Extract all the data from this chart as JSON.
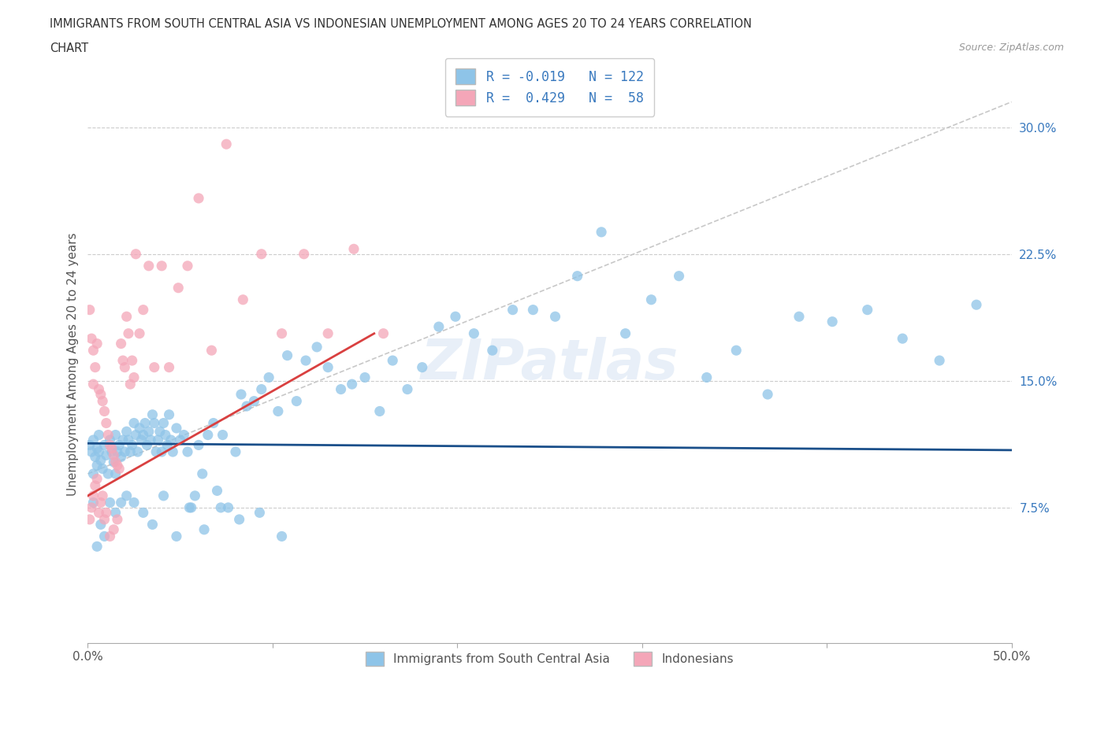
{
  "title_line1": "IMMIGRANTS FROM SOUTH CENTRAL ASIA VS INDONESIAN UNEMPLOYMENT AMONG AGES 20 TO 24 YEARS CORRELATION",
  "title_line2": "CHART",
  "source_text": "Source: ZipAtlas.com",
  "ylabel": "Unemployment Among Ages 20 to 24 years",
  "xlim": [
    0.0,
    0.5
  ],
  "ylim": [
    -0.005,
    0.325
  ],
  "ytick_values": [
    0.075,
    0.15,
    0.225,
    0.3
  ],
  "ytick_labels": [
    "7.5%",
    "15.0%",
    "22.5%",
    "30.0%"
  ],
  "xtick_values": [
    0.0,
    0.1,
    0.2,
    0.3,
    0.4,
    0.5
  ],
  "xtick_labels": [
    "0.0%",
    "",
    "",
    "",
    "",
    "50.0%"
  ],
  "color_blue": "#8ec4e8",
  "color_pink": "#f4a6b8",
  "color_blue_line": "#1a4f8a",
  "color_pink_line": "#d94040",
  "color_dashed_line": "#c8c8c8",
  "watermark": "ZIPatlas",
  "blue_line_y0": 0.113,
  "blue_line_y1": 0.109,
  "pink_line_x0": 0.0,
  "pink_line_y0": 0.082,
  "pink_line_x1": 0.155,
  "pink_line_y1": 0.178,
  "dashed_line_x0": 0.0,
  "dashed_line_y0": 0.095,
  "dashed_line_x1": 0.5,
  "dashed_line_y1": 0.315,
  "blue_dots_x": [
    0.001,
    0.002,
    0.003,
    0.003,
    0.004,
    0.005,
    0.005,
    0.006,
    0.006,
    0.007,
    0.008,
    0.009,
    0.01,
    0.011,
    0.012,
    0.013,
    0.014,
    0.015,
    0.015,
    0.016,
    0.017,
    0.018,
    0.019,
    0.02,
    0.021,
    0.022,
    0.023,
    0.024,
    0.025,
    0.026,
    0.027,
    0.028,
    0.029,
    0.03,
    0.031,
    0.032,
    0.033,
    0.034,
    0.035,
    0.036,
    0.037,
    0.038,
    0.039,
    0.04,
    0.041,
    0.042,
    0.043,
    0.044,
    0.045,
    0.046,
    0.048,
    0.05,
    0.052,
    0.054,
    0.056,
    0.058,
    0.06,
    0.062,
    0.065,
    0.068,
    0.07,
    0.073,
    0.076,
    0.08,
    0.083,
    0.086,
    0.09,
    0.094,
    0.098,
    0.103,
    0.108,
    0.113,
    0.118,
    0.124,
    0.13,
    0.137,
    0.143,
    0.15,
    0.158,
    0.165,
    0.173,
    0.181,
    0.19,
    0.199,
    0.209,
    0.219,
    0.23,
    0.241,
    0.253,
    0.265,
    0.278,
    0.291,
    0.305,
    0.32,
    0.335,
    0.351,
    0.368,
    0.385,
    0.403,
    0.422,
    0.441,
    0.461,
    0.481,
    0.003,
    0.005,
    0.007,
    0.009,
    0.012,
    0.015,
    0.018,
    0.021,
    0.025,
    0.03,
    0.035,
    0.041,
    0.048,
    0.055,
    0.063,
    0.072,
    0.082,
    0.093,
    0.105
  ],
  "blue_dots_y": [
    0.112,
    0.108,
    0.115,
    0.095,
    0.105,
    0.11,
    0.1,
    0.108,
    0.118,
    0.103,
    0.098,
    0.112,
    0.106,
    0.095,
    0.115,
    0.108,
    0.102,
    0.118,
    0.095,
    0.108,
    0.112,
    0.105,
    0.115,
    0.108,
    0.12,
    0.115,
    0.108,
    0.112,
    0.125,
    0.118,
    0.108,
    0.122,
    0.115,
    0.118,
    0.125,
    0.112,
    0.12,
    0.115,
    0.13,
    0.125,
    0.108,
    0.115,
    0.12,
    0.108,
    0.125,
    0.118,
    0.112,
    0.13,
    0.115,
    0.108,
    0.122,
    0.115,
    0.118,
    0.108,
    0.075,
    0.082,
    0.112,
    0.095,
    0.118,
    0.125,
    0.085,
    0.118,
    0.075,
    0.108,
    0.142,
    0.135,
    0.138,
    0.145,
    0.152,
    0.132,
    0.165,
    0.138,
    0.162,
    0.17,
    0.158,
    0.145,
    0.148,
    0.152,
    0.132,
    0.162,
    0.145,
    0.158,
    0.182,
    0.188,
    0.178,
    0.168,
    0.192,
    0.192,
    0.188,
    0.212,
    0.238,
    0.178,
    0.198,
    0.212,
    0.152,
    0.168,
    0.142,
    0.188,
    0.185,
    0.192,
    0.175,
    0.162,
    0.195,
    0.078,
    0.052,
    0.065,
    0.058,
    0.078,
    0.072,
    0.078,
    0.082,
    0.078,
    0.072,
    0.065,
    0.082,
    0.058,
    0.075,
    0.062,
    0.075,
    0.068,
    0.072,
    0.058
  ],
  "pink_dots_x": [
    0.001,
    0.002,
    0.003,
    0.003,
    0.004,
    0.005,
    0.006,
    0.007,
    0.008,
    0.009,
    0.01,
    0.011,
    0.012,
    0.013,
    0.014,
    0.015,
    0.016,
    0.017,
    0.018,
    0.019,
    0.02,
    0.021,
    0.022,
    0.023,
    0.024,
    0.025,
    0.026,
    0.028,
    0.03,
    0.033,
    0.036,
    0.04,
    0.044,
    0.049,
    0.054,
    0.06,
    0.067,
    0.075,
    0.084,
    0.094,
    0.105,
    0.117,
    0.13,
    0.144,
    0.16,
    0.001,
    0.002,
    0.003,
    0.004,
    0.005,
    0.006,
    0.007,
    0.008,
    0.009,
    0.01,
    0.012,
    0.014,
    0.016
  ],
  "pink_dots_y": [
    0.192,
    0.175,
    0.168,
    0.148,
    0.158,
    0.172,
    0.145,
    0.142,
    0.138,
    0.132,
    0.125,
    0.118,
    0.112,
    0.11,
    0.106,
    0.102,
    0.1,
    0.098,
    0.172,
    0.162,
    0.158,
    0.188,
    0.178,
    0.148,
    0.162,
    0.152,
    0.225,
    0.178,
    0.192,
    0.218,
    0.158,
    0.218,
    0.158,
    0.205,
    0.218,
    0.258,
    0.168,
    0.29,
    0.198,
    0.225,
    0.178,
    0.225,
    0.178,
    0.228,
    0.178,
    0.068,
    0.075,
    0.082,
    0.088,
    0.092,
    0.072,
    0.078,
    0.082,
    0.068,
    0.072,
    0.058,
    0.062,
    0.068
  ]
}
